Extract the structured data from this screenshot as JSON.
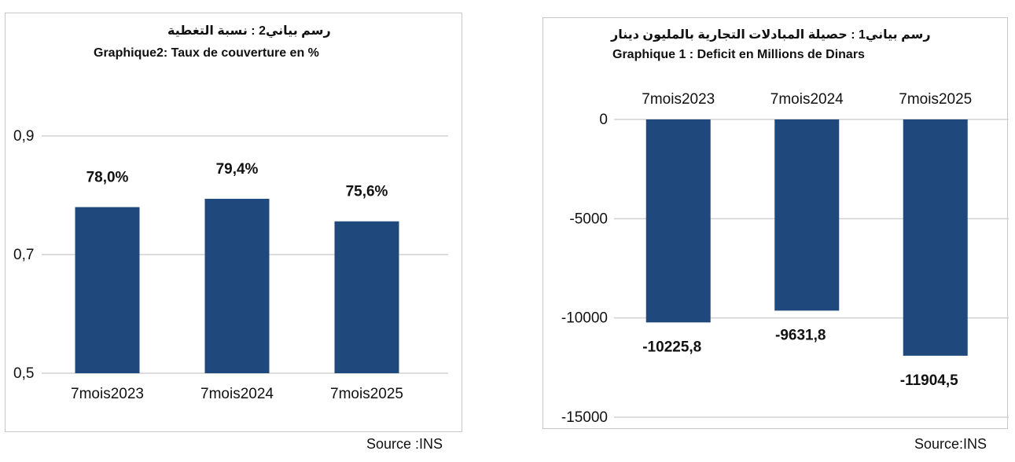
{
  "colors": {
    "bar": "#1f497d",
    "grid": "#d0d0d0",
    "text": "#111111"
  },
  "chart_data": [
    {
      "type": "bar",
      "title": "رسم بياني2 :  نسبة التغطية",
      "subtitle": "Graphique2: Taux de couverture en %",
      "categories": [
        "7mois2023",
        "7mois2024",
        "7mois2025"
      ],
      "values": [
        0.78,
        0.794,
        0.756
      ],
      "data_labels": [
        "78,0%",
        "79,4%",
        "75,6%"
      ],
      "y_ticks": [
        0.5,
        0.7,
        0.9
      ],
      "y_tick_labels": [
        "0,5",
        "0,7",
        "0,9"
      ],
      "ylim": [
        0.5,
        0.9
      ],
      "grid": true,
      "source": "Source :INS"
    },
    {
      "type": "bar",
      "title": "رسم بياني1 :  حصيلة المبادلات التجارية بالمليون دينار",
      "subtitle": "Graphique 1 : Deficit en Millions de Dinars",
      "categories": [
        "7mois2023",
        "7mois2024",
        "7mois2025"
      ],
      "values": [
        -10225.8,
        -9631.8,
        -11904.5
      ],
      "data_labels": [
        "-10225,8",
        "-9631,8",
        "-11904,5"
      ],
      "y_ticks": [
        0,
        -5000,
        -10000,
        -15000
      ],
      "y_tick_labels": [
        "0",
        "-5000",
        "-10000",
        "-15000"
      ],
      "ylim": [
        -15000,
        0
      ],
      "grid": true,
      "source": "Source:INS"
    }
  ]
}
